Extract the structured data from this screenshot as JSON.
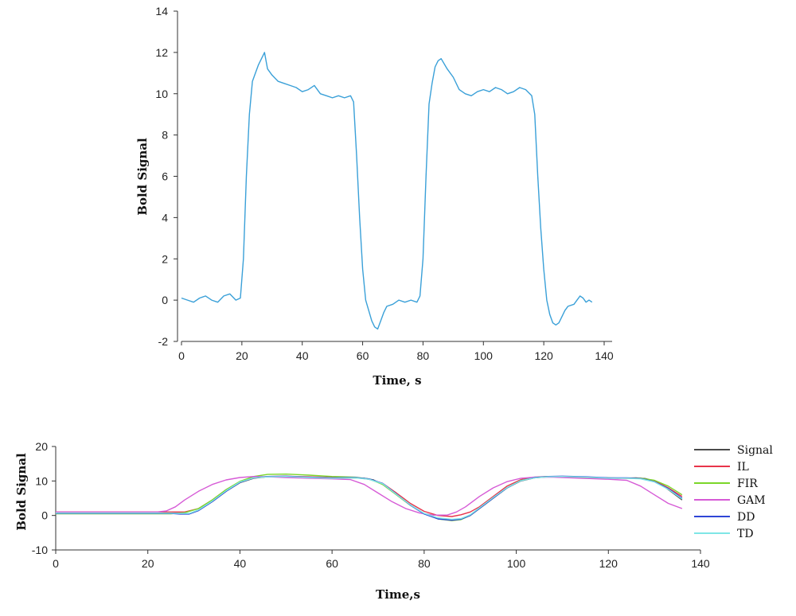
{
  "chart_data": [
    {
      "type": "line",
      "title": "",
      "xlabel": "Time, s",
      "ylabel": "Bold Signal",
      "xlim": [
        0,
        140
      ],
      "ylim": [
        -2,
        14
      ],
      "xticks": [
        "0",
        "20",
        "40",
        "60",
        "80",
        "100",
        "120",
        "140"
      ],
      "yticks": [
        "-2",
        "0",
        "2",
        "4",
        "6",
        "8",
        "10",
        "12",
        "14"
      ],
      "grid": false,
      "series": [
        {
          "color": "#3aa0d8",
          "x": [
            0,
            2,
            4,
            6,
            8,
            10,
            12,
            14,
            16,
            18,
            19.5,
            20.5,
            21.5,
            22.5,
            23.5,
            24.5,
            25.5,
            26.5,
            27.5,
            28.5,
            30,
            32,
            34,
            36,
            38,
            40,
            42,
            44,
            46,
            48,
            50,
            52,
            54,
            56,
            57,
            58,
            59,
            60,
            61,
            62,
            63,
            64,
            65,
            66,
            67,
            68,
            70,
            72,
            74,
            76,
            78,
            79,
            80,
            81,
            82,
            83,
            84,
            85,
            86,
            88,
            90,
            92,
            94,
            96,
            98,
            100,
            102,
            104,
            106,
            108,
            110,
            112,
            114,
            116,
            117,
            118,
            119,
            120,
            121,
            122,
            123,
            124,
            125,
            126,
            127,
            128,
            130,
            131,
            132,
            133,
            134,
            135,
            136
          ],
          "y": [
            0.1,
            0.0,
            -0.1,
            0.1,
            0.2,
            0.0,
            -0.1,
            0.2,
            0.3,
            0.0,
            0.1,
            2.0,
            6.0,
            9.0,
            10.6,
            11.0,
            11.4,
            11.7,
            12.0,
            11.2,
            10.9,
            10.6,
            10.5,
            10.4,
            10.3,
            10.1,
            10.2,
            10.4,
            10.0,
            9.9,
            9.8,
            9.9,
            9.8,
            9.9,
            9.6,
            7.0,
            4.0,
            1.5,
            0.0,
            -0.5,
            -1.0,
            -1.3,
            -1.4,
            -1.0,
            -0.6,
            -0.3,
            -0.2,
            0.0,
            -0.1,
            0.0,
            -0.1,
            0.2,
            2.0,
            6.0,
            9.5,
            10.5,
            11.3,
            11.6,
            11.7,
            11.2,
            10.8,
            10.2,
            10.0,
            9.9,
            10.1,
            10.2,
            10.1,
            10.3,
            10.2,
            10.0,
            10.1,
            10.3,
            10.2,
            9.9,
            9.0,
            6.0,
            3.5,
            1.5,
            0.0,
            -0.7,
            -1.1,
            -1.2,
            -1.1,
            -0.8,
            -0.5,
            -0.3,
            -0.2,
            0.0,
            0.2,
            0.1,
            -0.1,
            0.0,
            -0.1
          ]
        }
      ]
    },
    {
      "type": "line",
      "title": "",
      "xlabel": "Time,s",
      "ylabel": "Bold Signal",
      "xlim": [
        0,
        140
      ],
      "ylim": [
        -10,
        20
      ],
      "xticks": [
        "0",
        "20",
        "40",
        "60",
        "80",
        "100",
        "120",
        "140"
      ],
      "yticks": [
        "-10",
        "0",
        "10",
        "20"
      ],
      "grid": false,
      "legend_position": "right",
      "series": [
        {
          "name": "Signal",
          "color": "#4a4a4a",
          "x": [
            0,
            25,
            27,
            29,
            31,
            34,
            37,
            40,
            43,
            46,
            50,
            55,
            60,
            65,
            67,
            69,
            71,
            74,
            77,
            80,
            83,
            86,
            88,
            90,
            92,
            95,
            98,
            101,
            104,
            107,
            110,
            114,
            118,
            122,
            126,
            128,
            130,
            132,
            134,
            136
          ],
          "y": [
            0.8,
            0.8,
            0.6,
            0.5,
            1.5,
            4.0,
            7.0,
            9.5,
            10.8,
            11.2,
            11.3,
            11.0,
            10.8,
            10.9,
            10.8,
            10.3,
            9.0,
            6.0,
            3.0,
            0.5,
            -0.8,
            -1.2,
            -1.0,
            0.0,
            2.0,
            5.0,
            8.0,
            10.0,
            10.9,
            11.2,
            11.3,
            11.1,
            10.9,
            10.8,
            10.9,
            10.7,
            10.0,
            8.5,
            6.5,
            4.5
          ]
        },
        {
          "name": "IL",
          "color": "#e8344a",
          "x": [
            0,
            25,
            28,
            31,
            34,
            37,
            40,
            43,
            46,
            50,
            55,
            60,
            65,
            68,
            71,
            74,
            77,
            80,
            83,
            86,
            88,
            90,
            92,
            95,
            98,
            101,
            104,
            107,
            110,
            115,
            120,
            124,
            127,
            130,
            133,
            136
          ],
          "y": [
            1.0,
            1.0,
            1.0,
            2.0,
            4.5,
            7.5,
            9.8,
            10.9,
            11.3,
            11.4,
            11.2,
            11.0,
            11.0,
            10.5,
            9.3,
            6.5,
            3.5,
            1.2,
            0.0,
            -0.3,
            0.2,
            1.0,
            2.5,
            5.5,
            8.5,
            10.4,
            11.1,
            11.3,
            11.2,
            11.0,
            10.8,
            10.8,
            10.8,
            10.0,
            8.0,
            5.5
          ]
        },
        {
          "name": "FIR",
          "color": "#7bd629",
          "x": [
            0,
            25,
            28,
            31,
            34,
            37,
            40,
            43,
            46,
            50,
            55,
            60,
            65,
            68,
            71,
            74,
            77,
            80,
            83,
            86,
            88,
            90,
            92,
            95,
            98,
            101,
            104,
            107,
            110,
            115,
            120,
            124,
            127,
            130,
            133,
            136
          ],
          "y": [
            0.5,
            0.5,
            0.8,
            2.0,
            4.5,
            7.5,
            9.9,
            11.3,
            11.9,
            12.0,
            11.7,
            11.3,
            11.1,
            10.6,
            9.0,
            6.0,
            3.0,
            0.5,
            -1.0,
            -1.5,
            -1.2,
            0.0,
            2.0,
            5.0,
            8.0,
            10.2,
            11.0,
            11.3,
            11.3,
            11.0,
            10.9,
            10.8,
            10.8,
            10.2,
            8.5,
            6.0
          ]
        },
        {
          "name": "GAM",
          "color": "#d65bd6",
          "x": [
            0,
            22,
            24,
            26,
            28,
            31,
            34,
            37,
            40,
            43,
            46,
            50,
            55,
            60,
            64,
            67,
            70,
            73,
            76,
            79,
            82,
            85,
            87,
            89,
            92,
            95,
            98,
            101,
            104,
            108,
            112,
            116,
            120,
            124,
            127,
            130,
            133,
            136
          ],
          "y": [
            1.0,
            1.0,
            1.3,
            2.5,
            4.5,
            7.0,
            9.0,
            10.3,
            11.0,
            11.3,
            11.2,
            11.0,
            10.8,
            10.6,
            10.4,
            9.0,
            6.5,
            4.0,
            2.0,
            0.7,
            0.1,
            0.1,
            1.0,
            2.5,
            5.5,
            8.0,
            9.8,
            10.8,
            11.1,
            11.1,
            10.9,
            10.7,
            10.5,
            10.2,
            8.5,
            6.0,
            3.5,
            2.0
          ]
        },
        {
          "name": "DD",
          "color": "#2f45d6",
          "x": [
            0,
            25,
            27,
            29,
            31,
            34,
            37,
            40,
            43,
            46,
            50,
            55,
            60,
            65,
            68,
            71,
            74,
            77,
            80,
            83,
            86,
            88,
            90,
            92,
            95,
            98,
            101,
            104,
            107,
            110,
            115,
            120,
            124,
            127,
            130,
            133,
            136
          ],
          "y": [
            0.6,
            0.6,
            0.4,
            0.4,
            1.4,
            4.0,
            7.0,
            9.6,
            10.9,
            11.3,
            11.4,
            11.1,
            10.9,
            11.0,
            10.6,
            9.3,
            6.2,
            3.0,
            0.4,
            -1.0,
            -1.4,
            -1.1,
            0.0,
            2.0,
            5.0,
            8.0,
            10.1,
            11.0,
            11.3,
            11.4,
            11.2,
            10.9,
            10.9,
            10.7,
            9.8,
            7.8,
            5.0
          ]
        },
        {
          "name": "TD",
          "color": "#7fe6e6",
          "x": [
            0,
            25,
            27,
            29,
            31,
            34,
            37,
            40,
            43,
            46,
            50,
            55,
            60,
            65,
            68,
            71,
            74,
            77,
            80,
            83,
            86,
            88,
            90,
            92,
            95,
            98,
            101,
            104,
            107,
            110,
            115,
            120,
            124,
            127,
            130,
            133,
            136
          ],
          "y": [
            0.7,
            0.7,
            0.6,
            0.6,
            1.6,
            4.2,
            7.2,
            9.7,
            10.9,
            11.2,
            11.3,
            11.0,
            10.8,
            10.9,
            10.5,
            9.2,
            6.1,
            3.1,
            0.6,
            -0.7,
            -1.1,
            -0.9,
            0.2,
            2.2,
            5.2,
            8.1,
            10.1,
            10.9,
            11.2,
            11.3,
            11.1,
            10.8,
            10.8,
            10.6,
            9.7,
            7.6,
            4.8
          ]
        }
      ]
    }
  ]
}
